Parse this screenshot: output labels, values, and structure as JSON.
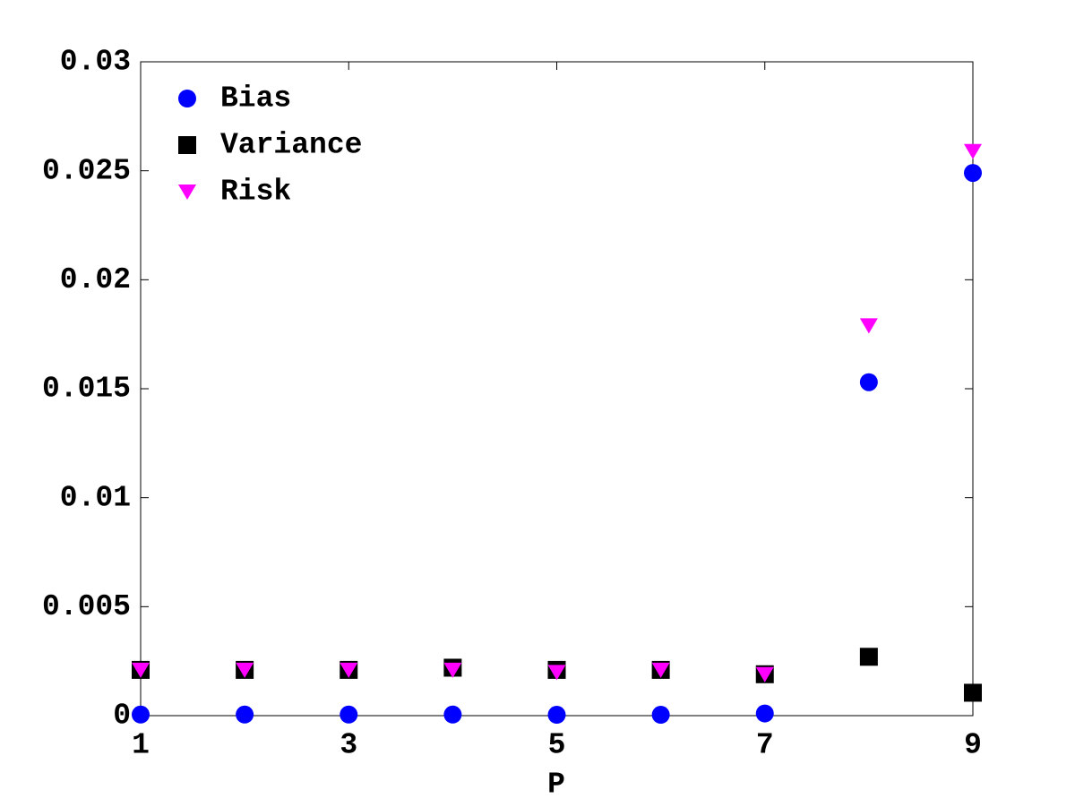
{
  "chart_data": {
    "type": "scatter",
    "x_label": "P",
    "x": [
      1,
      2,
      3,
      4,
      5,
      6,
      7,
      8,
      9
    ],
    "series": [
      {
        "name": "Bias",
        "color": "#0000ff",
        "marker": "circle",
        "values": [
          5e-05,
          5e-05,
          5e-05,
          5e-05,
          4e-05,
          4e-05,
          0.0001,
          0.0153,
          0.0249
        ]
      },
      {
        "name": "Variance",
        "color": "#000000",
        "marker": "square",
        "values": [
          0.0021,
          0.0021,
          0.0021,
          0.0022,
          0.0021,
          0.0021,
          0.0019,
          0.0027,
          0.00105
        ]
      },
      {
        "name": "Risk",
        "color": "#ff00ff",
        "marker": "triangle-down",
        "values": [
          0.0021,
          0.0021,
          0.0021,
          0.0021,
          0.002,
          0.0021,
          0.0019,
          0.0179,
          0.0259
        ]
      }
    ],
    "xlim": [
      1,
      9
    ],
    "xticks": [
      1,
      3,
      5,
      7,
      9
    ],
    "ylim": [
      0,
      0.03
    ],
    "yticks": [
      0,
      0.005,
      0.01,
      0.015,
      0.02,
      0.025,
      0.03
    ],
    "legend": "upper-left"
  }
}
